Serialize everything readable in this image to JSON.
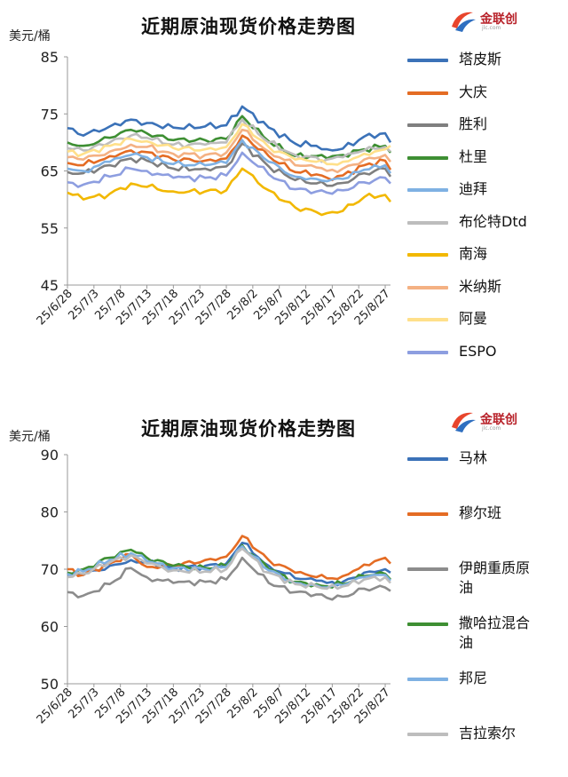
{
  "brand": {
    "name": "金联创",
    "sub": "jlc.com",
    "icon": "jlc-logo-icon"
  },
  "chart_data": [
    {
      "type": "line",
      "title": "近期原油现货价格走势图",
      "ylabel": "美元/桶",
      "ylim": [
        45,
        85
      ],
      "yticks": [
        45,
        55,
        65,
        75,
        85
      ],
      "grid": false,
      "legend": "right",
      "x": [
        "25/6/28",
        "25/6/29",
        "25/6/30",
        "25/7/1",
        "25/7/2",
        "25/7/3",
        "25/7/4",
        "25/7/5",
        "25/7/6",
        "25/7/7",
        "25/7/8",
        "25/7/9",
        "25/7/10",
        "25/7/11",
        "25/7/12",
        "25/7/13",
        "25/7/14",
        "25/7/15",
        "25/7/16",
        "25/7/17",
        "25/7/18",
        "25/7/19",
        "25/7/20",
        "25/7/21",
        "25/7/22",
        "25/7/23",
        "25/7/24",
        "25/7/25",
        "25/7/26",
        "25/7/27",
        "25/7/28",
        "25/7/29",
        "25/7/30",
        "25/7/31",
        "25/8/1",
        "25/8/2",
        "25/8/3",
        "25/8/4",
        "25/8/5",
        "25/8/6",
        "25/8/7",
        "25/8/8",
        "25/8/9",
        "25/8/10",
        "25/8/11",
        "25/8/12",
        "25/8/13",
        "25/8/14",
        "25/8/15",
        "25/8/16",
        "25/8/17",
        "25/8/18",
        "25/8/19",
        "25/8/20",
        "25/8/21",
        "25/8/22",
        "25/8/23",
        "25/8/24",
        "25/8/25",
        "25/8/26",
        "25/8/27",
        "25/8/28"
      ],
      "xtick_labels": [
        "25/6/28",
        "25/7/3",
        "25/7/8",
        "25/7/13",
        "25/7/18",
        "25/7/23",
        "25/7/28",
        "25/8/2",
        "25/8/7",
        "25/8/12",
        "25/8/17",
        "25/8/22",
        "25/8/27"
      ],
      "anchors": [
        0,
        3,
        8,
        12,
        15,
        20,
        26,
        30,
        33,
        38,
        43,
        47,
        49,
        52,
        56,
        60,
        61
      ],
      "series": [
        {
          "name": "塔皮斯",
          "color": "#3b72b8",
          "anchor_values": [
            72.5,
            71.2,
            72.8,
            74.0,
            73.4,
            72.6,
            72.8,
            73.0,
            76.3,
            72.6,
            69.8,
            69.4,
            68.8,
            68.9,
            71.0,
            71.6,
            70.0
          ]
        },
        {
          "name": "大庆",
          "color": "#e46c24",
          "anchor_values": [
            66.4,
            66.0,
            67.6,
            68.6,
            68.3,
            67.0,
            66.8,
            67.2,
            71.2,
            67.6,
            64.8,
            64.4,
            63.8,
            64.2,
            66.0,
            66.8,
            65.2
          ]
        },
        {
          "name": "胜利",
          "color": "#7f7f7f",
          "anchor_values": [
            64.8,
            64.6,
            66.0,
            67.2,
            66.8,
            65.4,
            65.4,
            65.8,
            69.8,
            65.8,
            63.4,
            62.8,
            62.4,
            62.9,
            64.6,
            65.4,
            64.0
          ]
        },
        {
          "name": "杜里",
          "color": "#3e8f33",
          "anchor_values": [
            70.0,
            69.4,
            70.8,
            72.2,
            71.6,
            70.4,
            70.4,
            70.6,
            74.6,
            70.2,
            67.6,
            67.6,
            67.2,
            67.8,
            68.8,
            69.4,
            68.2
          ]
        },
        {
          "name": "迪拜",
          "color": "#7fb1e3",
          "anchor_values": [
            65.4,
            65.0,
            66.6,
            67.8,
            67.4,
            66.2,
            66.0,
            66.4,
            70.4,
            66.6,
            64.0,
            63.6,
            63.2,
            63.6,
            65.2,
            66.0,
            64.6
          ]
        },
        {
          "name": "布伦特Dtd",
          "color": "#bdbdbd",
          "anchor_values": [
            69.0,
            68.6,
            70.0,
            71.2,
            70.8,
            69.6,
            69.6,
            70.0,
            74.0,
            70.0,
            67.8,
            67.4,
            67.0,
            67.4,
            68.6,
            69.2,
            68.4
          ]
        },
        {
          "name": "南海",
          "color": "#f2b800",
          "anchor_values": [
            61.2,
            60.0,
            61.0,
            62.8,
            62.2,
            61.4,
            61.4,
            61.6,
            65.4,
            61.6,
            58.6,
            57.8,
            57.6,
            58.0,
            60.4,
            60.8,
            59.6
          ]
        },
        {
          "name": "米纳斯",
          "color": "#f4b183",
          "anchor_values": [
            67.4,
            67.0,
            68.4,
            69.6,
            69.2,
            68.0,
            67.8,
            68.2,
            72.2,
            68.4,
            66.0,
            65.6,
            65.0,
            65.4,
            67.0,
            67.8,
            66.6
          ]
        },
        {
          "name": "阿曼",
          "color": "#ffe08a",
          "anchor_values": [
            68.4,
            68.0,
            69.4,
            70.6,
            70.2,
            69.0,
            68.8,
            69.2,
            73.2,
            69.2,
            67.0,
            66.6,
            66.2,
            66.6,
            68.0,
            68.8,
            69.4
          ]
        },
        {
          "name": "ESPO",
          "color": "#8d9ee0",
          "anchor_values": [
            63.0,
            62.6,
            64.0,
            65.4,
            65.0,
            63.8,
            63.8,
            64.2,
            68.2,
            64.4,
            61.8,
            61.4,
            61.2,
            61.6,
            63.0,
            63.8,
            62.8
          ]
        }
      ]
    },
    {
      "type": "line",
      "title": "近期原油现货价格走势图",
      "ylabel": "美元/桶",
      "ylim": [
        50,
        90
      ],
      "yticks": [
        50,
        60,
        70,
        80,
        90
      ],
      "grid": false,
      "legend": "right",
      "x": [
        "25/6/28",
        "25/6/29",
        "25/6/30",
        "25/7/1",
        "25/7/2",
        "25/7/3",
        "25/7/4",
        "25/7/5",
        "25/7/6",
        "25/7/7",
        "25/7/8",
        "25/7/9",
        "25/7/10",
        "25/7/11",
        "25/7/12",
        "25/7/13",
        "25/7/14",
        "25/7/15",
        "25/7/16",
        "25/7/17",
        "25/7/18",
        "25/7/19",
        "25/7/20",
        "25/7/21",
        "25/7/22",
        "25/7/23",
        "25/7/24",
        "25/7/25",
        "25/7/26",
        "25/7/27",
        "25/7/28",
        "25/7/29",
        "25/7/30",
        "25/7/31",
        "25/8/1",
        "25/8/2",
        "25/8/3",
        "25/8/4",
        "25/8/5",
        "25/8/6",
        "25/8/7",
        "25/8/8",
        "25/8/9",
        "25/8/10",
        "25/8/11",
        "25/8/12",
        "25/8/13",
        "25/8/14",
        "25/8/15",
        "25/8/16",
        "25/8/17",
        "25/8/18",
        "25/8/19",
        "25/8/20",
        "25/8/21",
        "25/8/22",
        "25/8/23",
        "25/8/24",
        "25/8/25",
        "25/8/26",
        "25/8/27",
        "25/8/28"
      ],
      "xtick_labels": [
        "25/6/28",
        "25/7/3",
        "25/7/8",
        "25/7/13",
        "25/7/18",
        "25/7/23",
        "25/7/28",
        "25/8/2",
        "25/8/7",
        "25/8/12",
        "25/8/17",
        "25/8/22",
        "25/8/27"
      ],
      "anchors": [
        0,
        3,
        8,
        12,
        15,
        20,
        26,
        30,
        33,
        38,
        43,
        47,
        49,
        52,
        56,
        60,
        61
      ],
      "series": [
        {
          "name": "马林",
          "color": "#3b72b8",
          "anchor_values": [
            69.0,
            69.0,
            70.6,
            71.6,
            71.2,
            70.2,
            70.6,
            71.0,
            74.6,
            70.6,
            68.4,
            68.0,
            67.6,
            67.8,
            69.4,
            70.0,
            69.4
          ]
        },
        {
          "name": "穆尔班",
          "color": "#e46c24",
          "anchor_values": [
            70.0,
            69.0,
            71.0,
            72.6,
            70.4,
            70.6,
            71.6,
            72.2,
            75.8,
            71.6,
            69.4,
            68.6,
            68.4,
            68.8,
            70.8,
            72.0,
            71.0
          ]
        },
        {
          "name": "伊朗重质原\n油",
          "color": "#8c8c8c",
          "anchor_values": [
            66.0,
            65.4,
            67.4,
            70.2,
            68.6,
            67.6,
            67.8,
            68.2,
            72.0,
            67.6,
            66.0,
            65.6,
            65.0,
            65.2,
            66.6,
            66.8,
            66.2
          ]
        },
        {
          "name": "撒哈拉混合\n油",
          "color": "#3e8f33",
          "anchor_values": [
            69.4,
            70.0,
            72.0,
            73.4,
            72.0,
            70.6,
            70.2,
            70.6,
            74.2,
            70.0,
            67.8,
            67.4,
            67.0,
            67.4,
            68.8,
            69.2,
            68.2
          ]
        },
        {
          "name": "邦尼",
          "color": "#7fb1e3",
          "anchor_values": [
            69.2,
            69.6,
            71.6,
            72.8,
            71.4,
            70.2,
            70.0,
            70.4,
            74.0,
            69.8,
            67.6,
            67.2,
            66.8,
            67.2,
            68.6,
            69.0,
            68.0
          ]
        },
        {
          "name": "吉拉索尔",
          "color": "#bdbdbd",
          "anchor_values": [
            68.6,
            69.2,
            71.2,
            72.4,
            71.0,
            69.8,
            69.6,
            70.0,
            73.6,
            69.4,
            67.4,
            67.0,
            66.6,
            67.0,
            68.2,
            68.6,
            67.6
          ]
        }
      ]
    }
  ]
}
